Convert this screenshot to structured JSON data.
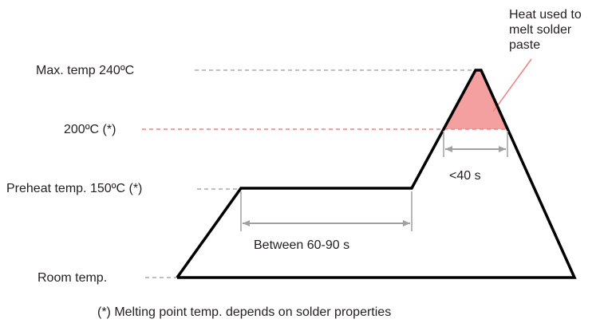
{
  "levels": {
    "max_temp": "Max. temp 240ºC",
    "melt_temp": "200ºC (*)",
    "preheat_temp": "Preheat temp. 150ºC (*)",
    "room_temp": "Room temp."
  },
  "durations": {
    "preheat": "Between 60-90 s",
    "reflow": "<40 s"
  },
  "annotation": {
    "heat_line1": "Heat used to",
    "heat_line2": "melt solder",
    "heat_line3": "paste"
  },
  "footnote": "(*) Melting point temp. depends on solder properties",
  "colors": {
    "profile": "#000000",
    "guide": "#999999",
    "melt_guide": "#f08080",
    "heat_fill": "#f4a0a0",
    "duration_arrow": "#a0a0a0"
  }
}
